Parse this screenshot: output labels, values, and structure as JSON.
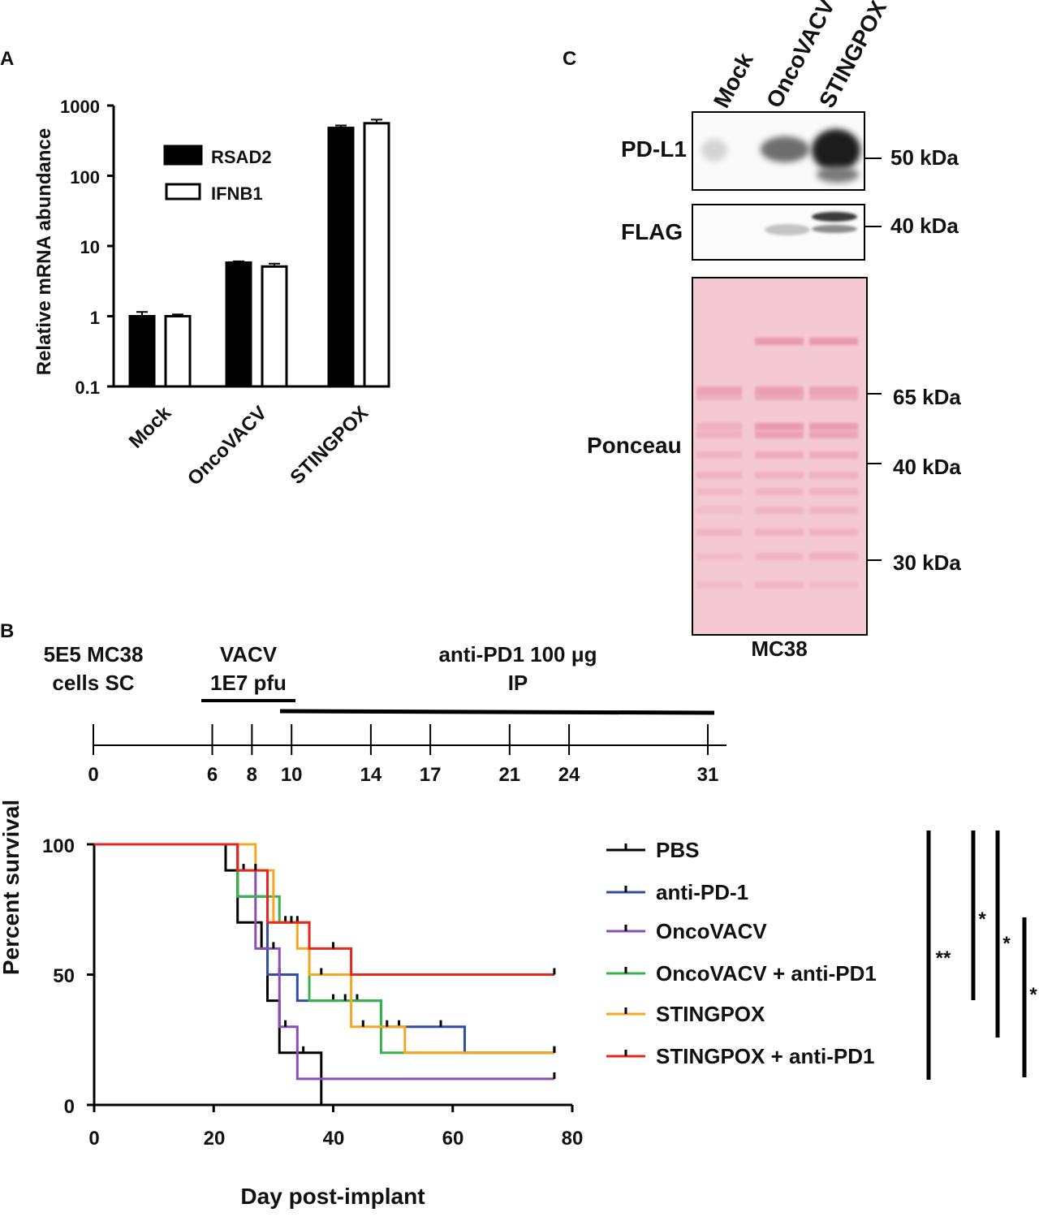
{
  "panels": {
    "a": "A",
    "b": "B",
    "c": "C"
  },
  "chart_data": [
    {
      "type": "bar",
      "panel": "A",
      "yscale": "log",
      "ylabel": "Relative mRNA abundance",
      "ylim": [
        0.1,
        1000
      ],
      "yticks": [
        "1000",
        "100",
        "10",
        "1",
        "0.1"
      ],
      "categories": [
        "Mock",
        "OncoVACV",
        "STINGPOX"
      ],
      "series": [
        {
          "name": "RSAD2",
          "fill": "#000000",
          "values": [
            1.0,
            5.8,
            480
          ],
          "errors": [
            0.15,
            0.25,
            40
          ]
        },
        {
          "name": "IFNB1",
          "fill": "#ffffff",
          "values": [
            1.0,
            5.1,
            560
          ],
          "errors": [
            0.06,
            0.5,
            70
          ]
        }
      ]
    },
    {
      "type": "line",
      "subtype": "kaplan-meier",
      "panel": "B",
      "xlabel": "Day post-implant",
      "ylabel": "Percent survival",
      "xlim": [
        0,
        80
      ],
      "ylim": [
        0,
        100
      ],
      "xticks": [
        "0",
        "20",
        "40",
        "60",
        "80"
      ],
      "yticks": [
        "100",
        "50",
        "0"
      ],
      "series": [
        {
          "name": "PBS",
          "color": "#000000",
          "steps": [
            [
              0,
              100
            ],
            [
              22,
              90
            ],
            [
              24,
              70
            ],
            [
              28,
              60
            ],
            [
              29,
              40
            ],
            [
              31,
              20
            ],
            [
              35,
              20
            ],
            [
              38,
              0
            ]
          ],
          "censor": [
            [
              35,
              20
            ]
          ],
          "end": 38
        },
        {
          "name": "anti-PD-1",
          "color": "#2f4ea8",
          "steps": [
            [
              0,
              100
            ],
            [
              24,
              80
            ],
            [
              29,
              50
            ],
            [
              34,
              40
            ],
            [
              48,
              30
            ],
            [
              62,
              20
            ]
          ],
          "censor": [
            [
              31,
              50
            ],
            [
              40,
              40
            ],
            [
              44,
              40
            ],
            [
              51,
              30
            ],
            [
              58,
              30
            ],
            [
              77,
              20
            ]
          ],
          "end": 77
        },
        {
          "name": "OncoVACV",
          "color": "#8a4fb0",
          "steps": [
            [
              0,
              100
            ],
            [
              24,
              90
            ],
            [
              27,
              60
            ],
            [
              31,
              30
            ],
            [
              34,
              10
            ]
          ],
          "censor": [
            [
              25,
              90
            ],
            [
              30,
              60
            ],
            [
              32,
              30
            ],
            [
              77,
              10
            ]
          ],
          "end": 77
        },
        {
          "name": "OncoVACV + anti-PD1",
          "color": "#39b24a",
          "steps": [
            [
              0,
              100
            ],
            [
              24,
              80
            ],
            [
              31,
              70
            ],
            [
              36,
              40
            ],
            [
              48,
              20
            ]
          ],
          "censor": [
            [
              32,
              70
            ],
            [
              42,
              40
            ],
            [
              77,
              20
            ]
          ],
          "end": 77
        },
        {
          "name": "STINGPOX",
          "color": "#f5a623",
          "steps": [
            [
              0,
              100
            ],
            [
              27,
              90
            ],
            [
              30,
              70
            ],
            [
              34,
              60
            ],
            [
              36,
              50
            ],
            [
              43,
              30
            ],
            [
              52,
              20
            ]
          ],
          "censor": [
            [
              34,
              70
            ],
            [
              38,
              50
            ],
            [
              45,
              30
            ],
            [
              49,
              30
            ],
            [
              77,
              20
            ]
          ],
          "end": 77
        },
        {
          "name": "STINGPOX + anti-PD1",
          "color": "#e8261c",
          "steps": [
            [
              0,
              100
            ],
            [
              24,
              90
            ],
            [
              29,
              70
            ],
            [
              36,
              60
            ],
            [
              43,
              50
            ]
          ],
          "censor": [
            [
              27,
              90
            ],
            [
              33,
              70
            ],
            [
              40,
              60
            ],
            [
              77,
              50
            ]
          ],
          "end": 77
        }
      ],
      "significance": [
        "**",
        "*",
        "*",
        "*"
      ]
    }
  ],
  "timeline": {
    "labels": {
      "cells": [
        "5E5 MC38",
        "cells SC"
      ],
      "vacv": [
        "VACV",
        "1E7 pfu"
      ],
      "antipd1": [
        "anti-PD1 100 μg",
        "IP"
      ]
    },
    "days": [
      "0",
      "6",
      "8",
      "10",
      "14",
      "17",
      "21",
      "24",
      "31"
    ],
    "day_values": [
      0,
      6,
      8,
      10,
      14,
      17,
      21,
      24,
      31
    ]
  },
  "blot": {
    "lanes": [
      "Mock",
      "OncoVACV",
      "STINGPOX"
    ],
    "rows": {
      "pdl1": "PD-L1",
      "flag": "FLAG",
      "ponceau": "Ponceau"
    },
    "markers": {
      "pdl1": "50 kDa",
      "flag": "40 kDa",
      "m65": "65 kDa",
      "m40": "40 kDa",
      "m30": "30 kDa"
    },
    "cell_line": "MC38"
  }
}
